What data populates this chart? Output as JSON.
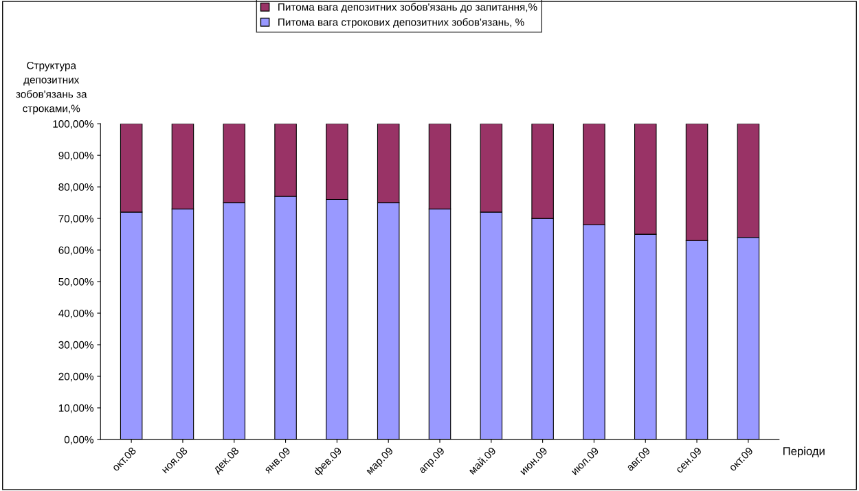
{
  "chart_data": {
    "type": "bar",
    "stacked": true,
    "ylabel": "Структура\nдепозитних\nзобов'язань за\nстроками,%",
    "xlabel": "Періоди",
    "categories": [
      "окт.08",
      "ноя.08",
      "дек.08",
      "янв.09",
      "фев.09",
      "мар.09",
      "апр.09",
      "май.09",
      "июн.09",
      "июл.09",
      "авг.09",
      "сен.09",
      "окт.09"
    ],
    "series": [
      {
        "name": "Питома вага строкових депозитних зобов'язань, %",
        "color": "#9999ff",
        "values": [
          72,
          73,
          75,
          77,
          76,
          75,
          73,
          72,
          70,
          68,
          65,
          63,
          64
        ]
      },
      {
        "name": "Питома вага депозитних зобов'язань до запитання,%",
        "color": "#993366",
        "values": [
          28,
          27,
          25,
          23,
          24,
          25,
          27,
          28,
          30,
          32,
          35,
          37,
          36
        ]
      }
    ],
    "ylim": [
      0,
      100
    ],
    "yticks": [
      {
        "value": 0,
        "label": "0,00%"
      },
      {
        "value": 10,
        "label": "10,00%"
      },
      {
        "value": 20,
        "label": "20,00%"
      },
      {
        "value": 30,
        "label": "30,00%"
      },
      {
        "value": 40,
        "label": "40,00%"
      },
      {
        "value": 50,
        "label": "50,00%"
      },
      {
        "value": 60,
        "label": "60,00%"
      },
      {
        "value": 70,
        "label": "70,00%"
      },
      {
        "value": 80,
        "label": "80,00%"
      },
      {
        "value": 90,
        "label": "90,00%"
      },
      {
        "value": 100,
        "label": "100,00%"
      }
    ],
    "grid": false,
    "legend": "top"
  }
}
